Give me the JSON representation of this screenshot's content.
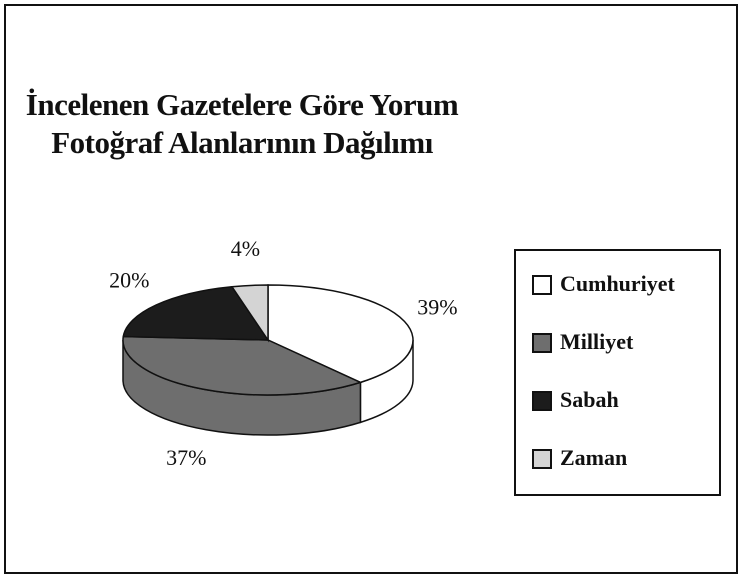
{
  "chart_data": {
    "type": "pie",
    "title": "İncelenen Gazetelere Göre Yorum Fotoğraf Alanlarının Dağılımı",
    "categories": [
      "Cumhuriyet",
      "Milliyet",
      "Sabah",
      "Zaman"
    ],
    "values": [
      39,
      37,
      20,
      4
    ],
    "value_labels": [
      "39%",
      "37%",
      "20%",
      "4%"
    ],
    "colors": [
      "#ffffff",
      "#6e6e6e",
      "#1c1c1c",
      "#d4d4d4"
    ],
    "legend": "right"
  }
}
